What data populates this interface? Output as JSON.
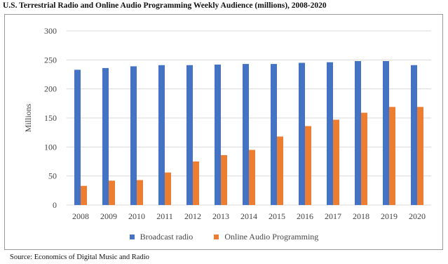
{
  "chart_data": {
    "type": "bar",
    "title": "U.S. Terrestrial Radio and Online Audio Programming Weekly Audience (millions), 2008-2020",
    "xlabel": "",
    "ylabel": "Millions",
    "ylim": [
      0,
      300
    ],
    "yticks": [
      0,
      50,
      100,
      150,
      200,
      250,
      300
    ],
    "grid": true,
    "legend_position": "bottom",
    "categories": [
      "2008",
      "2009",
      "2010",
      "2011",
      "2012",
      "2013",
      "2014",
      "2015",
      "2016",
      "2017",
      "2018",
      "2019",
      "2020"
    ],
    "series": [
      {
        "name": "Broadcast radio",
        "color": "#4472c4",
        "values": [
          233,
          236,
          239,
          241,
          241,
          242,
          243,
          243,
          245,
          246,
          248,
          248,
          241
        ]
      },
      {
        "name": "Online Audio Programming",
        "color": "#ed7d31",
        "values": [
          33,
          42,
          43,
          56,
          75,
          86,
          95,
          118,
          136,
          147,
          159,
          169,
          169
        ]
      }
    ],
    "source": "Source: Economics of Digital Music and Radio"
  }
}
